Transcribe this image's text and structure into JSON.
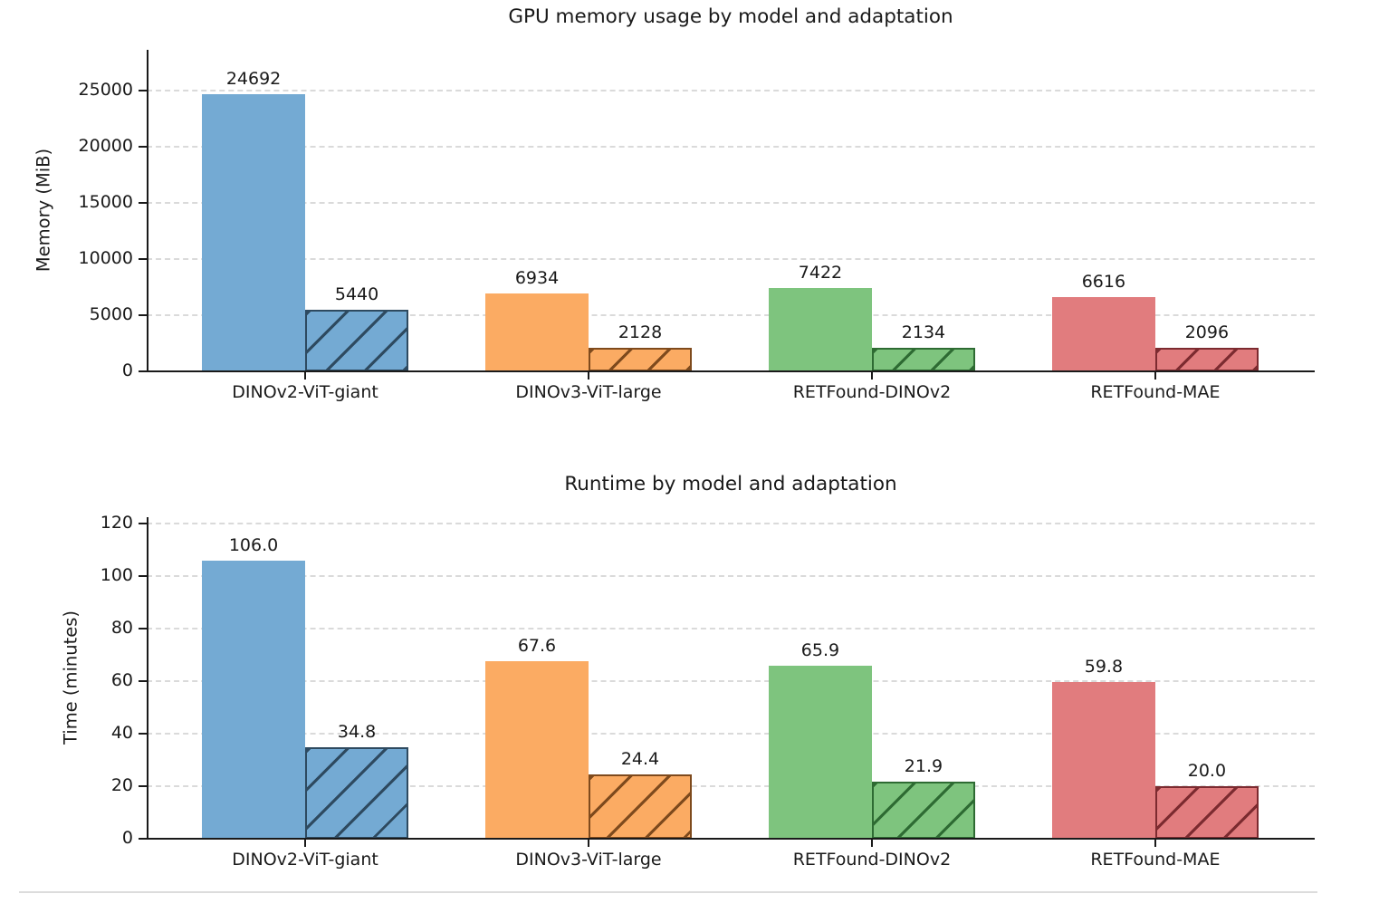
{
  "page": {
    "background": "#ffffff",
    "text_color": "#1a1a1a",
    "grid_color": "#dadada",
    "divider_color": "#dcdcdc"
  },
  "chart_data": [
    {
      "type": "bar",
      "title": "GPU memory usage by model and adaptation",
      "xlabel": "",
      "ylabel": "Memory (MiB)",
      "ylim": [
        0,
        28600
      ],
      "yticks": [
        0,
        5000,
        10000,
        15000,
        20000,
        25000
      ],
      "ytick_labels": [
        "0",
        "5000",
        "10000",
        "15000",
        "20000",
        "25000"
      ],
      "grid": "horizontal-dashed",
      "legend": "none",
      "categories": [
        "DINOv2-ViT-giant",
        "DINOv3-ViT-large",
        "RETFound-DINOv2",
        "RETFound-MAE"
      ],
      "series": [
        {
          "name": "solid",
          "hatch": "none",
          "values": [
            24692,
            6934,
            7422,
            6616
          ],
          "labels": [
            "24692",
            "6934",
            "7422",
            "6616"
          ]
        },
        {
          "name": "hatched",
          "hatch": "/",
          "values": [
            5440,
            2128,
            2134,
            2096
          ],
          "labels": [
            "5440",
            "2128",
            "2134",
            "2096"
          ]
        }
      ],
      "group_colors": [
        "#74aad3",
        "#fbab63",
        "#7ec47e",
        "#e17c7e"
      ],
      "hatch_colors": [
        "#2e4a60",
        "#7e4a1d",
        "#2e6b33",
        "#7c2b30"
      ]
    },
    {
      "type": "bar",
      "title": "Runtime by model and adaptation",
      "xlabel": "",
      "ylabel": "Time (minutes)",
      "ylim": [
        0,
        122.5
      ],
      "yticks": [
        0,
        20,
        40,
        60,
        80,
        100,
        120
      ],
      "ytick_labels": [
        "0",
        "20",
        "40",
        "60",
        "80",
        "100",
        "120"
      ],
      "grid": "horizontal-dashed",
      "legend": "none",
      "categories": [
        "DINOv2-ViT-giant",
        "DINOv3-ViT-large",
        "RETFound-DINOv2",
        "RETFound-MAE"
      ],
      "series": [
        {
          "name": "solid",
          "hatch": "none",
          "values": [
            106.0,
            67.6,
            65.9,
            59.8
          ],
          "labels": [
            "106.0",
            "67.6",
            "65.9",
            "59.8"
          ]
        },
        {
          "name": "hatched",
          "hatch": "/",
          "values": [
            34.8,
            24.4,
            21.9,
            20.0
          ],
          "labels": [
            "34.8",
            "24.4",
            "21.9",
            "20.0"
          ]
        }
      ],
      "group_colors": [
        "#74aad3",
        "#fbab63",
        "#7ec47e",
        "#e17c7e"
      ],
      "hatch_colors": [
        "#2e4a60",
        "#7e4a1d",
        "#2e6b33",
        "#7c2b30"
      ]
    }
  ]
}
